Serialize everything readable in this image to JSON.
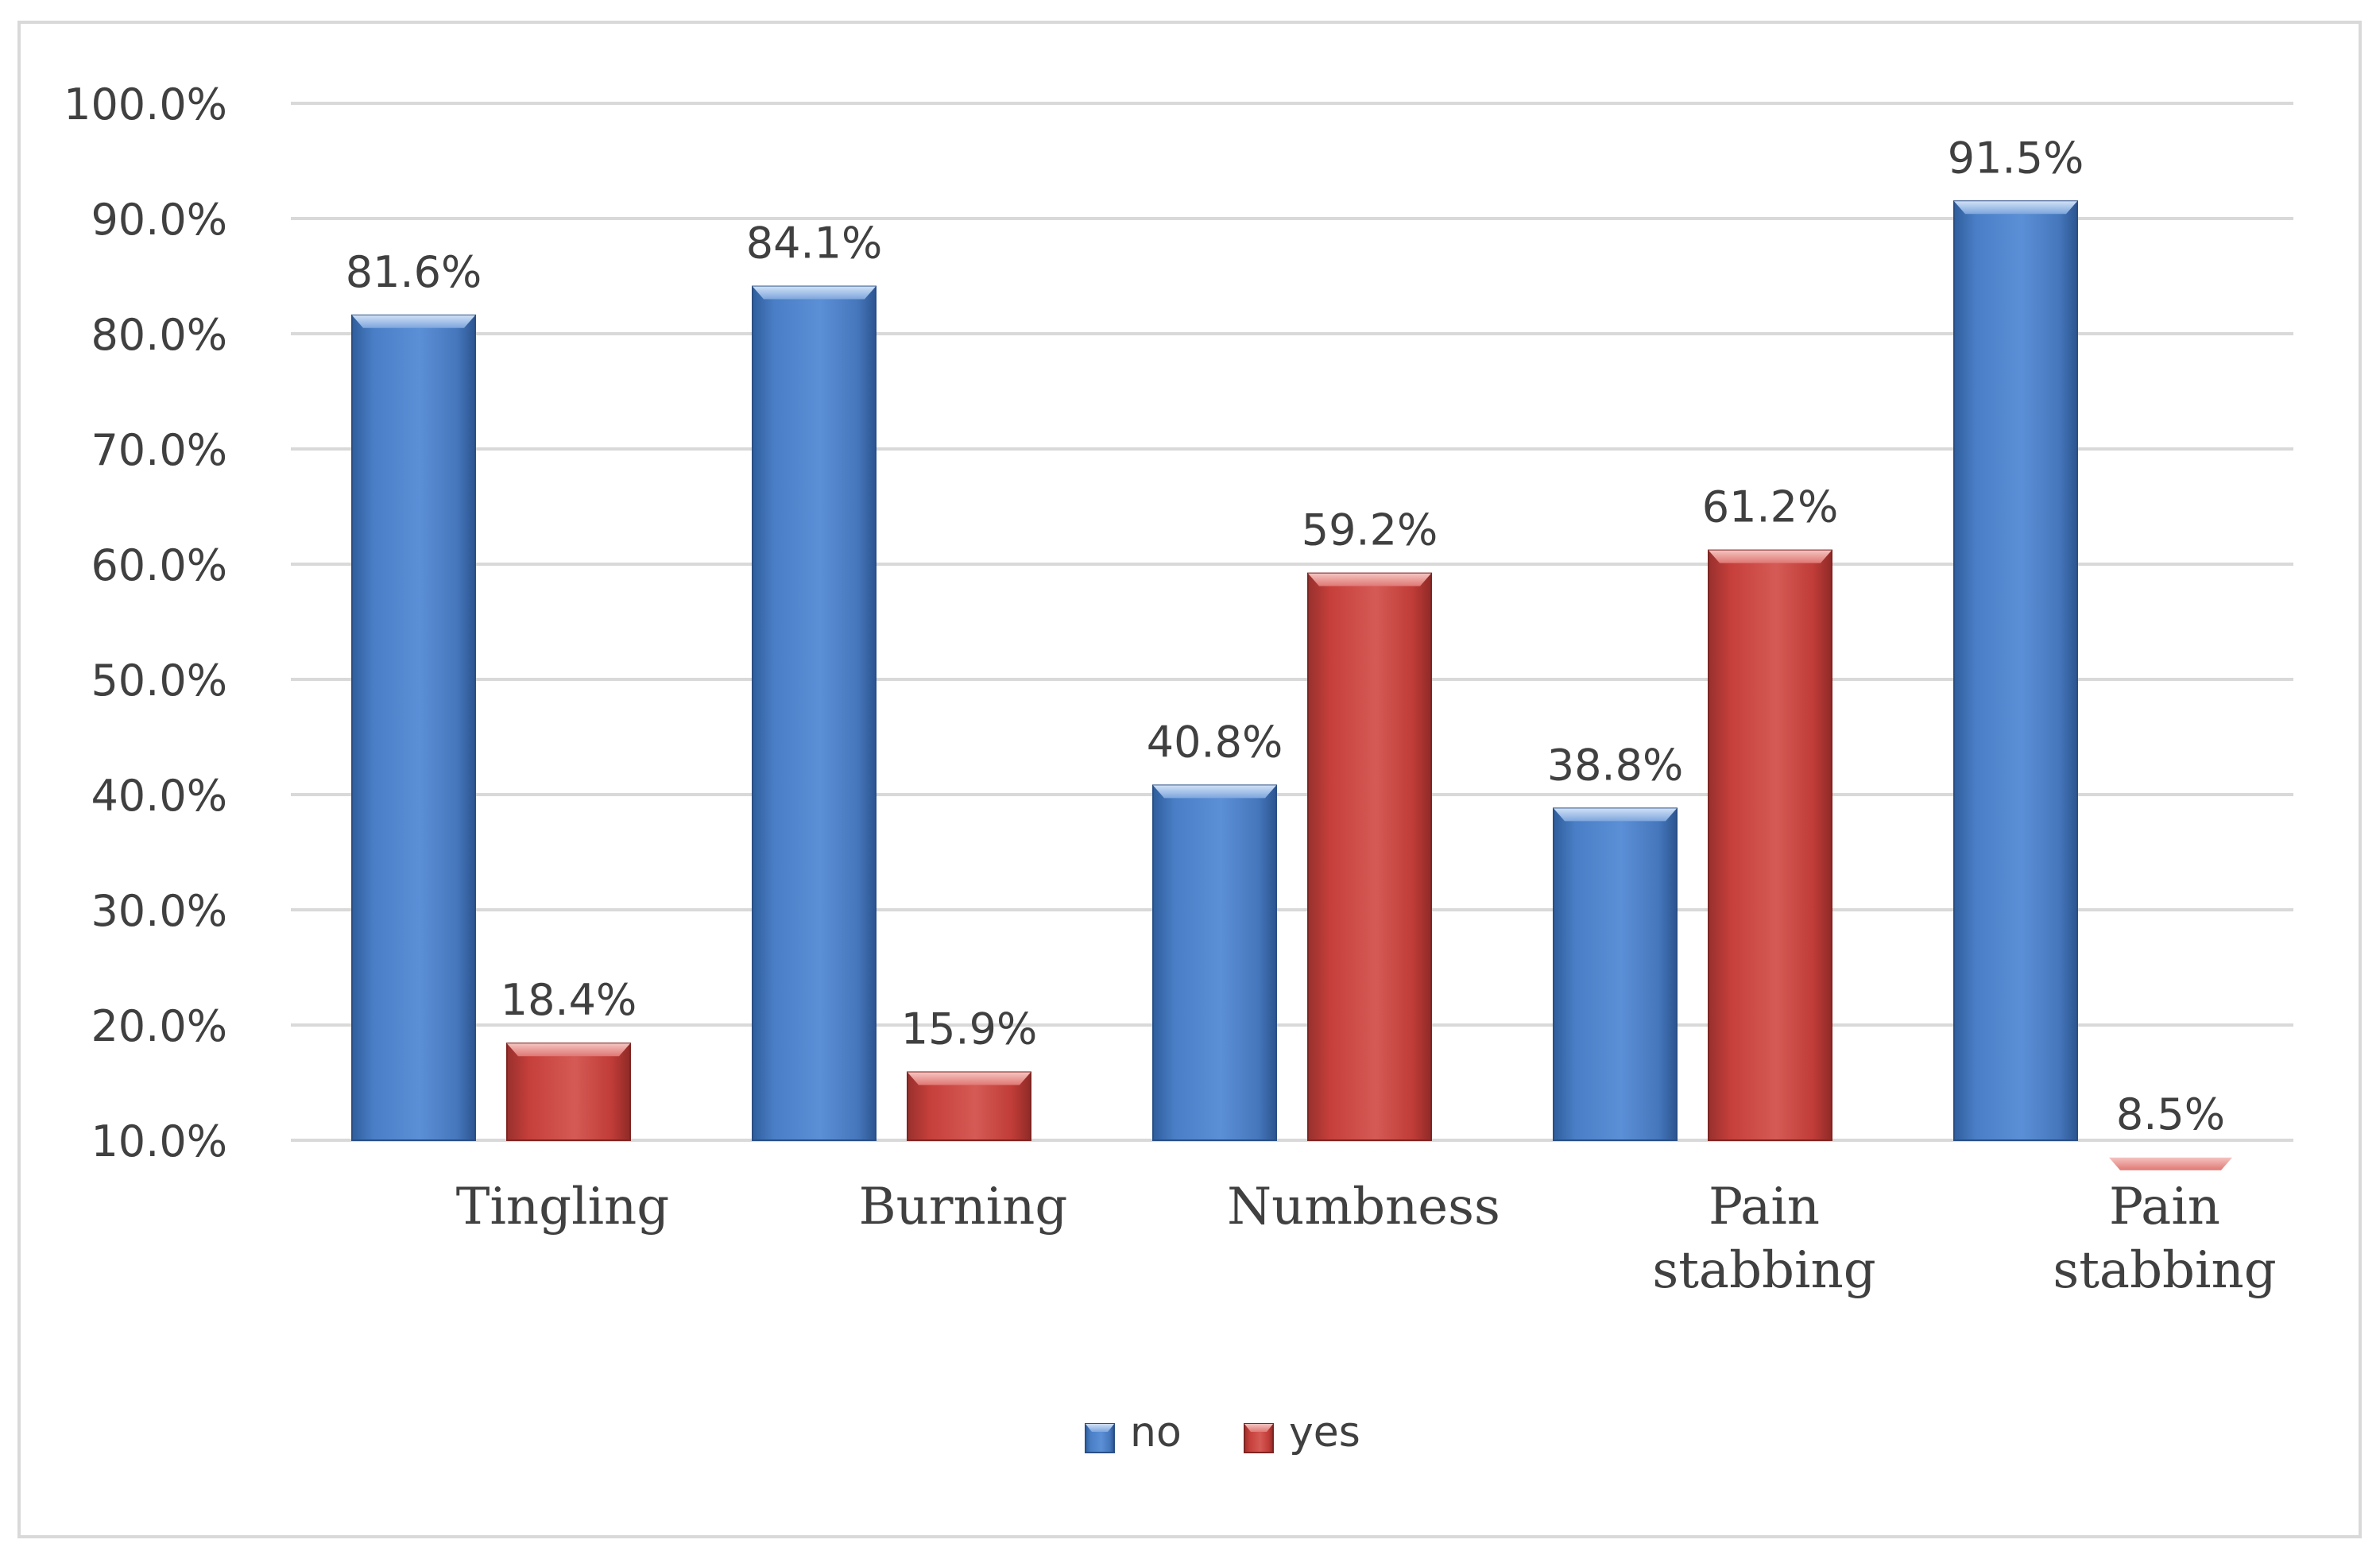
{
  "chart_data": {
    "type": "bar",
    "title": "",
    "xlabel": "",
    "ylabel": "",
    "ylim": [
      10,
      100
    ],
    "yticks": [
      "10.0%",
      "20.0%",
      "30.0%",
      "40.0%",
      "50.0%",
      "60.0%",
      "70.0%",
      "80.0%",
      "90.0%",
      "100.0%"
    ],
    "ytick_values": [
      10,
      20,
      30,
      40,
      50,
      60,
      70,
      80,
      90,
      100
    ],
    "grid": true,
    "legend_position": "bottom-center",
    "categories": [
      "Tingling",
      "Burning",
      "Numbness",
      "Pain stabbing",
      "Pain stabbing"
    ],
    "category_lines": [
      [
        "Tingling"
      ],
      [
        "Burning"
      ],
      [
        "Numbness"
      ],
      [
        "Pain",
        "stabbing"
      ],
      [
        "Pain",
        "stabbing"
      ]
    ],
    "series": [
      {
        "name": "no",
        "color": "#4a7fc7",
        "values": [
          81.6,
          84.1,
          40.8,
          38.8,
          91.5
        ],
        "labels": [
          "81.6%",
          "84.1%",
          "40.8%",
          "38.8%",
          "91.5%"
        ]
      },
      {
        "name": "yes",
        "color": "#c9413d",
        "values": [
          18.4,
          15.9,
          59.2,
          61.2,
          8.5
        ],
        "labels": [
          "18.4%",
          "15.9%",
          "59.2%",
          "61.2%",
          "8.5%"
        ]
      }
    ]
  }
}
